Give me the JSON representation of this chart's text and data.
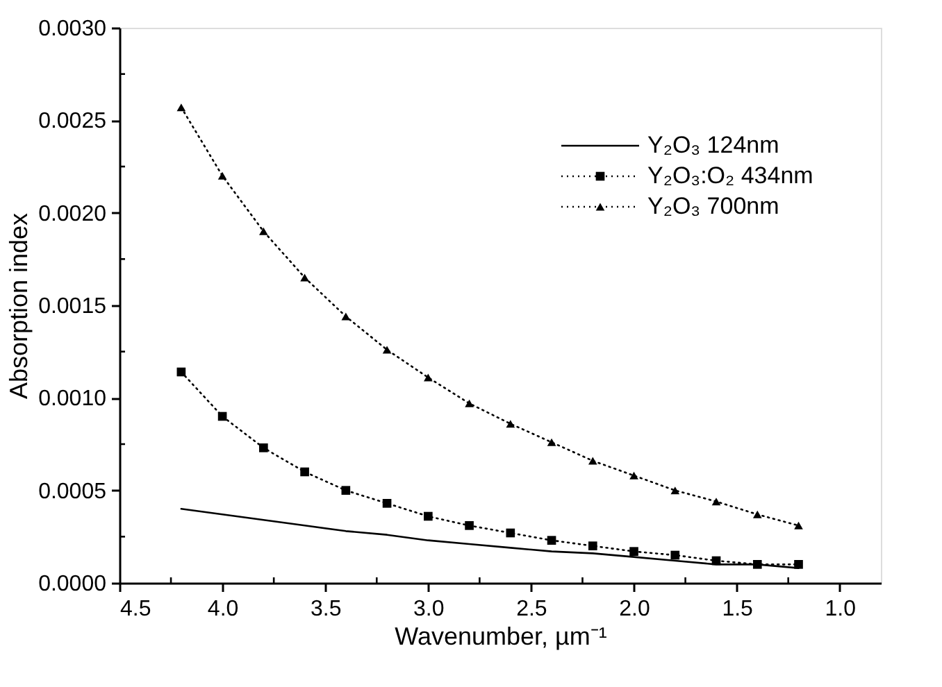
{
  "chart_data": {
    "type": "line",
    "xlabel": "Wavenumber, µm⁻¹",
    "ylabel": "Absorption index",
    "x": [
      4.2,
      4.0,
      3.8,
      3.6,
      3.4,
      3.2,
      3.0,
      2.8,
      2.6,
      2.4,
      2.2,
      2.0,
      1.8,
      1.6,
      1.4,
      1.2
    ],
    "series": [
      {
        "name": "Y₂O₃ 124nm",
        "color": "#000000",
        "line_style": "solid",
        "marker": "none",
        "values": [
          0.0004,
          0.00037,
          0.00034,
          0.00031,
          0.00028,
          0.00026,
          0.00023,
          0.00021,
          0.00019,
          0.00017,
          0.00016,
          0.00014,
          0.00012,
          0.0001,
          0.0001,
          8e-05
        ]
      },
      {
        "name": "Y₂O₃:O₂ 434nm",
        "color": "#000000",
        "line_style": "dotted",
        "marker": "square",
        "values": [
          0.00114,
          0.0009,
          0.00073,
          0.0006,
          0.0005,
          0.00043,
          0.00036,
          0.00031,
          0.00027,
          0.00023,
          0.0002,
          0.00017,
          0.00015,
          0.00012,
          0.0001,
          0.0001
        ]
      },
      {
        "name": "Y₂O₃ 700nm",
        "color": "#000000",
        "line_style": "dotted",
        "marker": "triangle",
        "values": [
          0.00257,
          0.0022,
          0.0019,
          0.00165,
          0.00144,
          0.00126,
          0.00111,
          0.00097,
          0.00086,
          0.00076,
          0.00066,
          0.00058,
          0.0005,
          0.00044,
          0.00037,
          0.00031
        ]
      }
    ],
    "xlim": [
      4.5,
      0.8
    ],
    "xticks": [
      {
        "value": 4.5,
        "label": "4.5"
      },
      {
        "value": 4.25,
        "label": null
      },
      {
        "value": 4.0,
        "label": "4.0"
      },
      {
        "value": 3.75,
        "label": null
      },
      {
        "value": 3.5,
        "label": "3.5"
      },
      {
        "value": 3.25,
        "label": null
      },
      {
        "value": 3.0,
        "label": "3.0"
      },
      {
        "value": 2.75,
        "label": null
      },
      {
        "value": 2.5,
        "label": "2.5"
      },
      {
        "value": 2.25,
        "label": null
      },
      {
        "value": 2.0,
        "label": "2.0"
      },
      {
        "value": 1.75,
        "label": null
      },
      {
        "value": 1.5,
        "label": "1.5"
      },
      {
        "value": 1.25,
        "label": null
      },
      {
        "value": 1.0,
        "label": "1.0"
      }
    ],
    "ylim": [
      0,
      0.003
    ],
    "yticks": [
      {
        "value": 0,
        "label": "0.0000"
      },
      {
        "value": 0.00025,
        "label": null
      },
      {
        "value": 0.0005,
        "label": "0.0005"
      },
      {
        "value": 0.00075,
        "label": null
      },
      {
        "value": 0.001,
        "label": "0.0010"
      },
      {
        "value": 0.00125,
        "label": null
      },
      {
        "value": 0.0015,
        "label": "0.0015"
      },
      {
        "value": 0.00175,
        "label": null
      },
      {
        "value": 0.002,
        "label": "0.0020"
      },
      {
        "value": 0.00225,
        "label": null
      },
      {
        "value": 0.0025,
        "label": "0.0025"
      },
      {
        "value": 0.00275,
        "label": null
      },
      {
        "value": 0.003,
        "label": "0.0030"
      }
    ],
    "grid": false,
    "legend": "top right"
  }
}
